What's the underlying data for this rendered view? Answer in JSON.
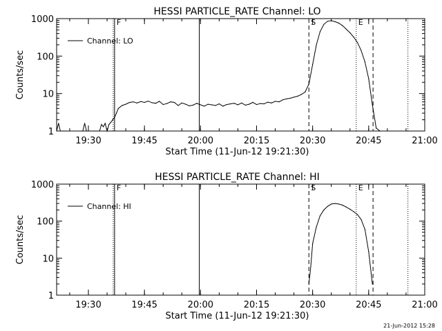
{
  "footer_timestamp": "21-Jun-2012 15:28",
  "chart_data": [
    {
      "type": "line",
      "title": "HESSI PARTICLE_RATE Channel: LO",
      "xlabel": "Start Time (11-Jun-12 19:21:30)",
      "ylabel": "Counts/sec",
      "yscale": "log",
      "ylim": [
        1,
        1000
      ],
      "xlim": [
        "19:21:30",
        "21:00:00"
      ],
      "x_ticks": [
        "19:30",
        "19:45",
        "20:00",
        "20:15",
        "20:30",
        "20:45",
        "21:00"
      ],
      "y_ticks": [
        "1",
        "10",
        "100",
        "1000"
      ],
      "legend": {
        "label": "Channel: LO",
        "position": "top-left"
      },
      "markers": [
        {
          "label": "F",
          "time": "19:37:00",
          "style": "dotted-solid"
        },
        {
          "label": "",
          "time": "19:59:40",
          "style": "solid"
        },
        {
          "label": "S",
          "time": "20:29:00",
          "style": "dashed"
        },
        {
          "label": "E",
          "time": "20:41:40",
          "style": "dotted"
        },
        {
          "label": "",
          "time": "20:46:10",
          "style": "dashed"
        },
        {
          "label": "",
          "time": "20:55:30",
          "style": "dotted"
        }
      ],
      "series": [
        {
          "name": "Channel: LO",
          "x": [
            "19:21:30",
            "19:22:00",
            "19:22:30",
            "19:23:00",
            "19:23:30",
            "19:24:00",
            "19:28:00",
            "19:28:30",
            "19:29:00",
            "19:29:30",
            "19:30:00",
            "19:30:30",
            "19:31:00",
            "19:31:30",
            "19:32:00",
            "19:32:30",
            "19:33:00",
            "19:33:30",
            "19:34:00",
            "19:34:30",
            "19:35:00",
            "19:35:30",
            "19:36:00",
            "19:36:30",
            "19:37:00",
            "19:37:30",
            "19:38:00",
            "19:39:00",
            "19:40:00",
            "19:41:00",
            "19:42:00",
            "19:43:00",
            "19:44:00",
            "19:45:00",
            "19:46:00",
            "19:47:00",
            "19:48:00",
            "19:49:00",
            "19:50:00",
            "19:51:00",
            "19:52:00",
            "19:53:00",
            "19:54:00",
            "19:55:00",
            "19:56:00",
            "19:57:00",
            "19:58:00",
            "19:59:00",
            "20:00:00",
            "20:01:00",
            "20:02:00",
            "20:03:00",
            "20:04:00",
            "20:05:00",
            "20:06:00",
            "20:07:00",
            "20:08:00",
            "20:09:00",
            "20:10:00",
            "20:11:00",
            "20:12:00",
            "20:13:00",
            "20:14:00",
            "20:15:00",
            "20:16:00",
            "20:17:00",
            "20:18:00",
            "20:19:00",
            "20:20:00",
            "20:21:00",
            "20:22:00",
            "20:23:00",
            "20:24:00",
            "20:25:00",
            "20:26:00",
            "20:27:00",
            "20:28:00",
            "20:29:00",
            "20:30:00",
            "20:31:00",
            "20:32:00",
            "20:33:00",
            "20:34:00",
            "20:35:00",
            "20:36:00",
            "20:37:00",
            "20:38:00",
            "20:39:00",
            "20:40:00",
            "20:41:00",
            "20:42:00",
            "20:43:00",
            "20:44:00",
            "20:45:00",
            "20:46:00",
            "20:47:00",
            "20:48:00"
          ],
          "y": [
            1,
            1.6,
            1,
            1,
            1,
            1,
            1,
            1,
            1.6,
            1,
            1,
            1,
            1,
            1,
            1,
            1,
            1,
            1.5,
            1.3,
            1.6,
            1,
            1.5,
            1.7,
            2,
            2.3,
            3,
            4,
            4.8,
            5.2,
            5.8,
            6,
            5.6,
            6.1,
            5.8,
            6.3,
            5.7,
            5.5,
            6.2,
            5.1,
            5.4,
            6,
            5.8,
            4.8,
            5.6,
            5.2,
            4.7,
            4.9,
            5.5,
            5,
            4.6,
            5.2,
            5,
            4.8,
            5.3,
            4.6,
            5.1,
            5.3,
            5.5,
            5,
            5.6,
            4.9,
            5.2,
            5.8,
            5.1,
            5.4,
            5.3,
            5.9,
            5.6,
            6.2,
            6,
            6.8,
            7.2,
            7.5,
            8,
            8.5,
            9.5,
            11,
            18,
            60,
            200,
            450,
            700,
            850,
            880,
            830,
            760,
            650,
            520,
            420,
            320,
            230,
            140,
            70,
            25,
            5,
            1.2,
            1
          ]
        }
      ]
    },
    {
      "type": "line",
      "title": "HESSI PARTICLE_RATE Channel: HI",
      "xlabel": "Start Time (11-Jun-12 19:21:30)",
      "ylabel": "Counts/sec",
      "yscale": "log",
      "ylim": [
        1,
        1000
      ],
      "xlim": [
        "19:21:30",
        "21:00:00"
      ],
      "x_ticks": [
        "19:30",
        "19:45",
        "20:00",
        "20:15",
        "20:30",
        "20:45",
        "21:00"
      ],
      "y_ticks": [
        "1",
        "10",
        "100",
        "1000"
      ],
      "legend": {
        "label": "Channel: HI",
        "position": "top-left"
      },
      "markers": [
        {
          "label": "F",
          "time": "19:37:00",
          "style": "dotted-solid"
        },
        {
          "label": "",
          "time": "19:59:40",
          "style": "solid"
        },
        {
          "label": "S",
          "time": "20:29:00",
          "style": "dashed"
        },
        {
          "label": "E",
          "time": "20:41:40",
          "style": "dotted"
        },
        {
          "label": "",
          "time": "20:46:10",
          "style": "dashed"
        },
        {
          "label": "",
          "time": "20:55:30",
          "style": "dotted"
        }
      ],
      "series": [
        {
          "name": "Channel: HI",
          "x": [
            "20:29:00",
            "20:29:30",
            "20:30:00",
            "20:31:00",
            "20:32:00",
            "20:33:00",
            "20:34:00",
            "20:35:00",
            "20:36:00",
            "20:37:00",
            "20:38:00",
            "20:39:00",
            "20:40:00",
            "20:41:00",
            "20:42:00",
            "20:43:00",
            "20:44:00",
            "20:45:00",
            "20:46:00"
          ],
          "y": [
            2,
            6,
            25,
            70,
            140,
            200,
            250,
            290,
            300,
            290,
            270,
            240,
            210,
            180,
            150,
            110,
            60,
            15,
            2
          ]
        }
      ]
    }
  ]
}
